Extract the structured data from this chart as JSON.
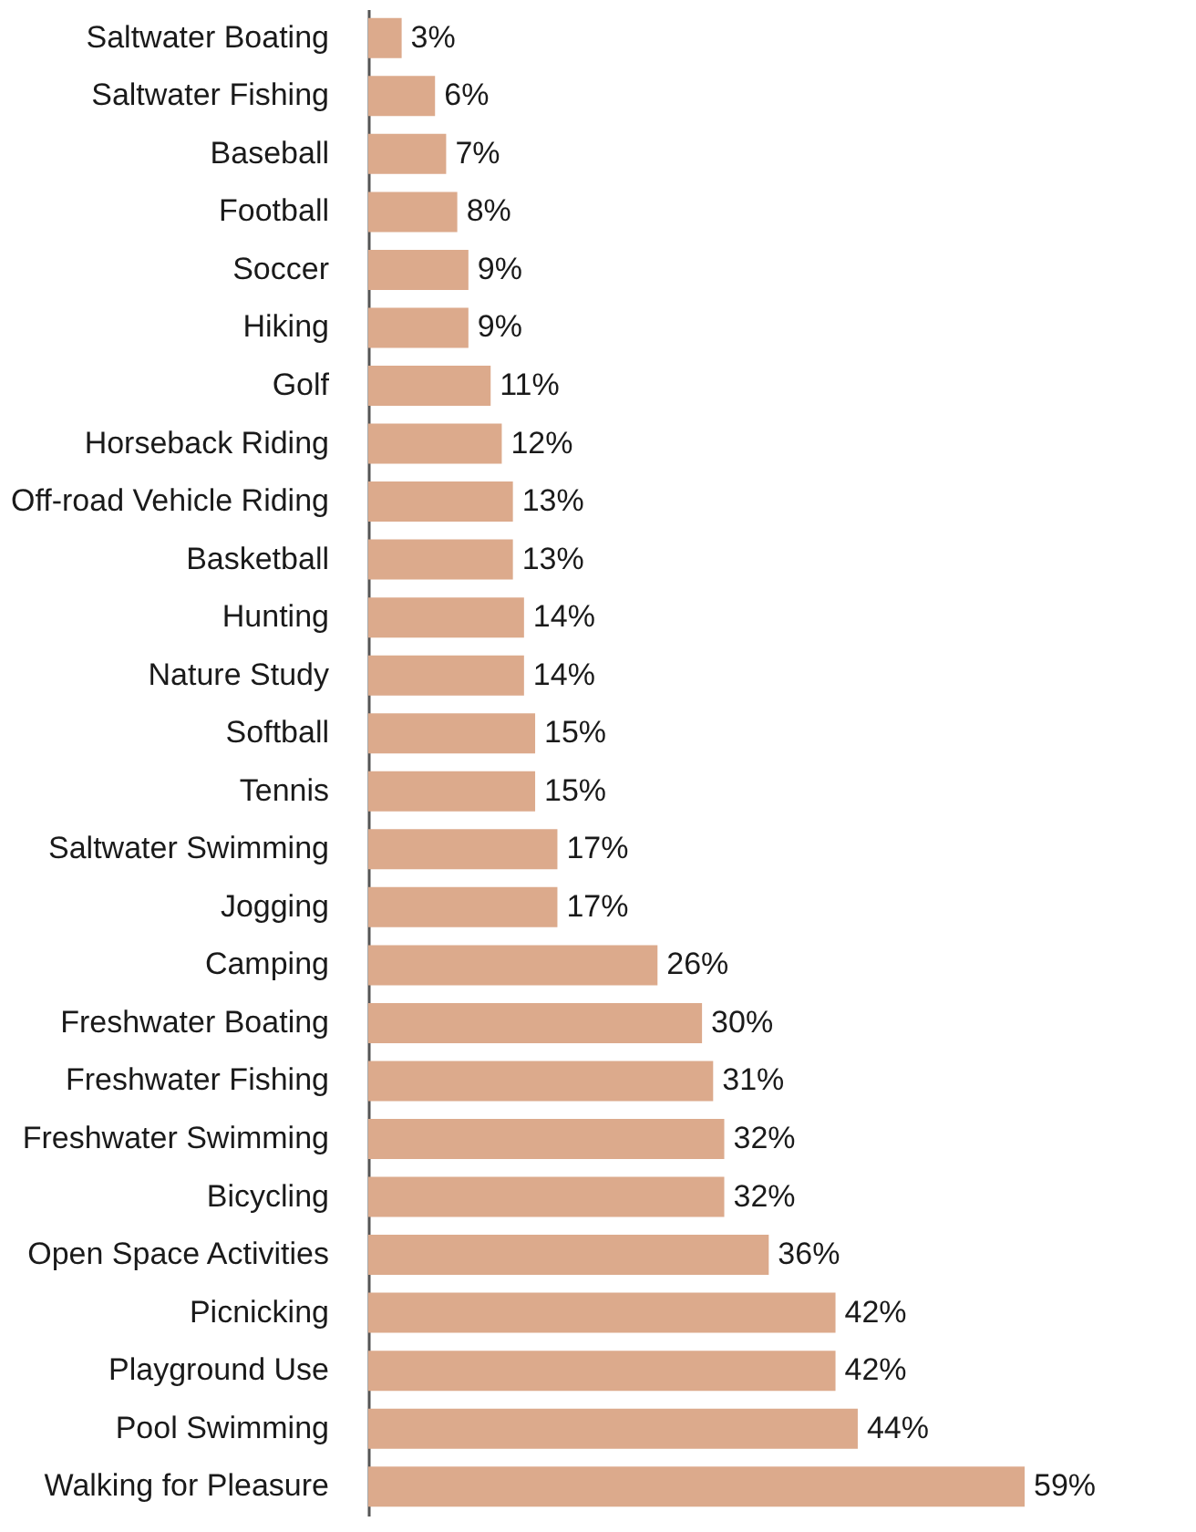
{
  "chart_data": {
    "type": "bar",
    "orientation": "horizontal",
    "color": "#dcaa8c",
    "categories": [
      "Saltwater Boating",
      "Saltwater Fishing",
      "Baseball",
      "Football",
      "Soccer",
      "Hiking",
      "Golf",
      "Horseback Riding",
      "Off-road Vehicle Riding",
      "Basketball",
      "Hunting",
      "Nature Study",
      "Softball",
      "Tennis",
      "Saltwater Swimming",
      "Jogging",
      "Camping",
      "Freshwater Boating",
      "Freshwater Fishing",
      "Freshwater Swimming",
      "Bicycling",
      "Open Space Activities",
      "Picnicking",
      "Playground Use",
      "Pool Swimming",
      "Walking for Pleasure"
    ],
    "values": [
      3,
      6,
      7,
      8,
      9,
      9,
      11,
      12,
      13,
      13,
      14,
      14,
      15,
      15,
      17,
      17,
      26,
      30,
      31,
      32,
      32,
      36,
      42,
      42,
      44,
      59
    ],
    "value_labels": [
      "3%",
      "6%",
      "7%",
      "8%",
      "9%",
      "9%",
      "11%",
      "12%",
      "13%",
      "13%",
      "14%",
      "14%",
      "15%",
      "15%",
      "17%",
      "17%",
      "26%",
      "30%",
      "31%",
      "32%",
      "32%",
      "36%",
      "42%",
      "42%",
      "44%",
      "59%"
    ]
  }
}
